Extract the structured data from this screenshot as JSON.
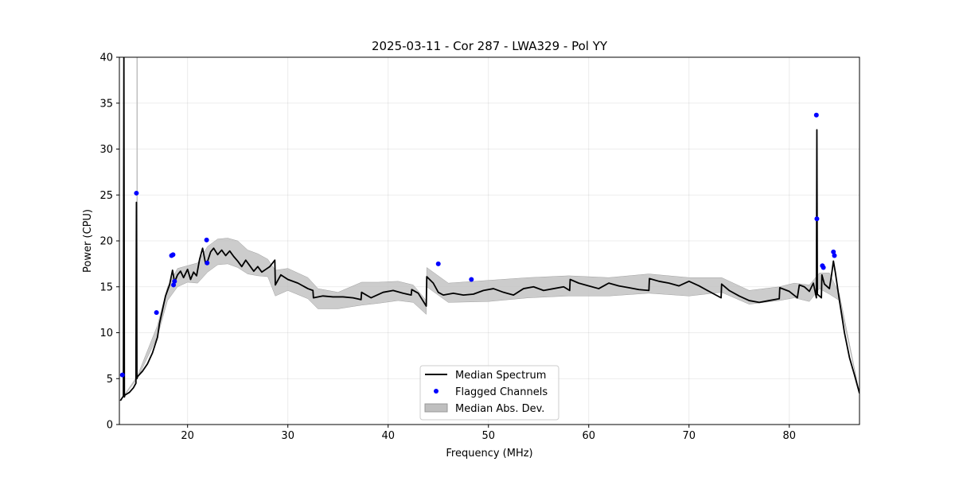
{
  "chart_data": {
    "type": "line",
    "title": "2025-03-11 - Cor 287 - LWA329 - Pol YY",
    "xlabel": "Frequency (MHz)",
    "ylabel": "Power (CPU)",
    "xlim": [
      13.2,
      87.0
    ],
    "ylim": [
      0,
      40
    ],
    "xticks": [
      20,
      30,
      40,
      50,
      60,
      70,
      80
    ],
    "yticks": [
      0,
      5,
      10,
      15,
      20,
      25,
      30,
      35,
      40
    ],
    "grid": true,
    "legend_position": "bottom-center",
    "colors": {
      "median": "#000000",
      "flagged": "#0000ff",
      "mad": "#bfbfbf"
    },
    "series": [
      {
        "name": "Median Spectrum",
        "kind": "line",
        "x": [
          13.3,
          13.6,
          13.65,
          13.7,
          13.75,
          13.9,
          14.2,
          14.6,
          14.85,
          14.9,
          14.95,
          15.0,
          15.5,
          16.0,
          16.5,
          17.0,
          17.2,
          17.5,
          17.8,
          18.2,
          18.5,
          18.7,
          19.0,
          19.3,
          19.6,
          20.0,
          20.3,
          20.6,
          20.9,
          21.2,
          21.5,
          21.8,
          22.0,
          22.3,
          22.6,
          23.0,
          23.4,
          23.8,
          24.2,
          24.6,
          25.0,
          25.4,
          25.8,
          26.2,
          26.6,
          27.0,
          27.4,
          27.8,
          28.2,
          28.7,
          28.75,
          29.3,
          30.0,
          31.0,
          32.0,
          32.5,
          32.55,
          33.5,
          34.5,
          35.5,
          36.5,
          37.3,
          37.35,
          38.3,
          39.5,
          40.5,
          41.5,
          42.3,
          42.35,
          43.0,
          43.8,
          43.85,
          44.5,
          45.0,
          45.5,
          46.5,
          47.5,
          48.5,
          49.5,
          50.5,
          51.5,
          52.5,
          53.5,
          54.5,
          55.5,
          56.5,
          57.5,
          58.1,
          58.15,
          59.0,
          60.0,
          61.0,
          62.0,
          63.0,
          64.0,
          65.0,
          66.0,
          66.05,
          67.0,
          68.0,
          69.0,
          70.0,
          71.0,
          72.0,
          73.2,
          73.25,
          74.0,
          75.0,
          76.0,
          77.0,
          78.0,
          79.0,
          79.05,
          80.0,
          80.8,
          81.0,
          81.5,
          82.0,
          82.4,
          82.7,
          82.75,
          82.8,
          83.0,
          83.2,
          83.25,
          83.5,
          84.0,
          84.2,
          84.4,
          84.6,
          85.0,
          85.5,
          86.0,
          86.5,
          87.0
        ],
        "y": [
          2.6,
          3.1,
          40.0,
          3.0,
          3.2,
          3.3,
          3.5,
          4.0,
          4.5,
          24.2,
          5.0,
          5.2,
          5.8,
          6.6,
          7.8,
          9.5,
          11.0,
          12.5,
          14.0,
          15.2,
          16.8,
          15.5,
          16.3,
          16.7,
          16.0,
          16.9,
          15.8,
          16.6,
          16.2,
          18.0,
          19.2,
          17.5,
          17.8,
          18.8,
          19.2,
          18.5,
          19.0,
          18.4,
          18.9,
          18.3,
          17.8,
          17.2,
          17.9,
          17.3,
          16.7,
          17.2,
          16.6,
          16.9,
          17.2,
          17.9,
          15.2,
          16.3,
          15.8,
          15.4,
          14.8,
          14.6,
          13.8,
          14.0,
          13.9,
          13.9,
          13.8,
          13.6,
          14.4,
          13.8,
          14.4,
          14.6,
          14.3,
          14.1,
          14.7,
          14.3,
          12.9,
          16.1,
          15.4,
          14.4,
          14.1,
          14.3,
          14.1,
          14.2,
          14.6,
          14.8,
          14.4,
          14.1,
          14.8,
          15.0,
          14.6,
          14.8,
          15.0,
          14.6,
          15.8,
          15.4,
          15.1,
          14.8,
          15.4,
          15.1,
          14.9,
          14.7,
          14.6,
          15.9,
          15.6,
          15.4,
          15.1,
          15.6,
          15.1,
          14.5,
          13.8,
          15.3,
          14.6,
          14.0,
          13.5,
          13.3,
          13.5,
          13.7,
          14.9,
          14.5,
          13.8,
          15.2,
          15.0,
          14.5,
          15.4,
          13.8,
          32.1,
          14.2,
          14.0,
          13.8,
          16.3,
          15.3,
          14.8,
          16.2,
          17.8,
          16.5,
          13.5,
          10.0,
          7.3,
          5.4,
          3.4
        ]
      },
      {
        "name": "Flagged Channels",
        "kind": "scatter",
        "x": [
          13.5,
          14.9,
          16.9,
          18.4,
          18.55,
          18.6,
          18.7,
          21.9,
          21.95,
          45.0,
          48.3,
          82.7,
          82.75,
          83.3,
          83.4,
          84.4,
          84.5
        ],
        "y": [
          5.4,
          25.2,
          12.2,
          18.4,
          18.5,
          15.2,
          15.6,
          20.1,
          17.6,
          17.5,
          15.8,
          33.7,
          22.4,
          17.3,
          17.1,
          18.8,
          18.4
        ]
      },
      {
        "name": "Median Abs. Dev.",
        "kind": "band",
        "x": [
          13.3,
          15.0,
          17.0,
          18.0,
          19.0,
          20.0,
          21.0,
          22.0,
          23.0,
          24.0,
          25.0,
          26.0,
          27.0,
          28.0,
          28.75,
          30.0,
          32.0,
          33.0,
          35.0,
          37.35,
          39.0,
          41.0,
          42.5,
          43.8,
          43.85,
          46.0,
          50.0,
          54.0,
          58.0,
          62.0,
          66.0,
          70.0,
          73.25,
          76.0,
          79.0,
          80.5,
          82.0,
          83.0,
          84.0,
          85.0,
          87.0
        ],
        "lower": [
          2.6,
          5.0,
          9.6,
          13.5,
          15.0,
          15.5,
          15.4,
          16.6,
          17.4,
          17.5,
          17.1,
          16.4,
          16.2,
          16.1,
          14.0,
          14.6,
          13.7,
          12.6,
          12.6,
          13.0,
          13.2,
          13.5,
          13.3,
          12.0,
          15.0,
          13.3,
          13.4,
          13.8,
          14.0,
          14.0,
          14.3,
          14.0,
          14.4,
          13.1,
          13.5,
          13.8,
          13.4,
          14.8,
          14.2,
          13.5,
          3.4
        ],
        "upper": [
          2.6,
          5.3,
          10.8,
          15.0,
          17.0,
          17.3,
          17.6,
          19.4,
          20.2,
          20.3,
          20.0,
          19.0,
          18.6,
          18.0,
          16.8,
          17.0,
          16.0,
          14.8,
          14.4,
          15.5,
          15.5,
          15.6,
          15.2,
          13.5,
          17.1,
          15.4,
          15.7,
          16.0,
          16.2,
          16.0,
          16.4,
          16.0,
          16.0,
          14.6,
          15.0,
          15.4,
          15.2,
          16.5,
          16.5,
          14.2,
          3.4
        ]
      }
    ],
    "legend": {
      "items": [
        {
          "label": "Median Spectrum"
        },
        {
          "label": "Flagged Channels"
        },
        {
          "label": "Median Abs. Dev."
        }
      ]
    }
  }
}
